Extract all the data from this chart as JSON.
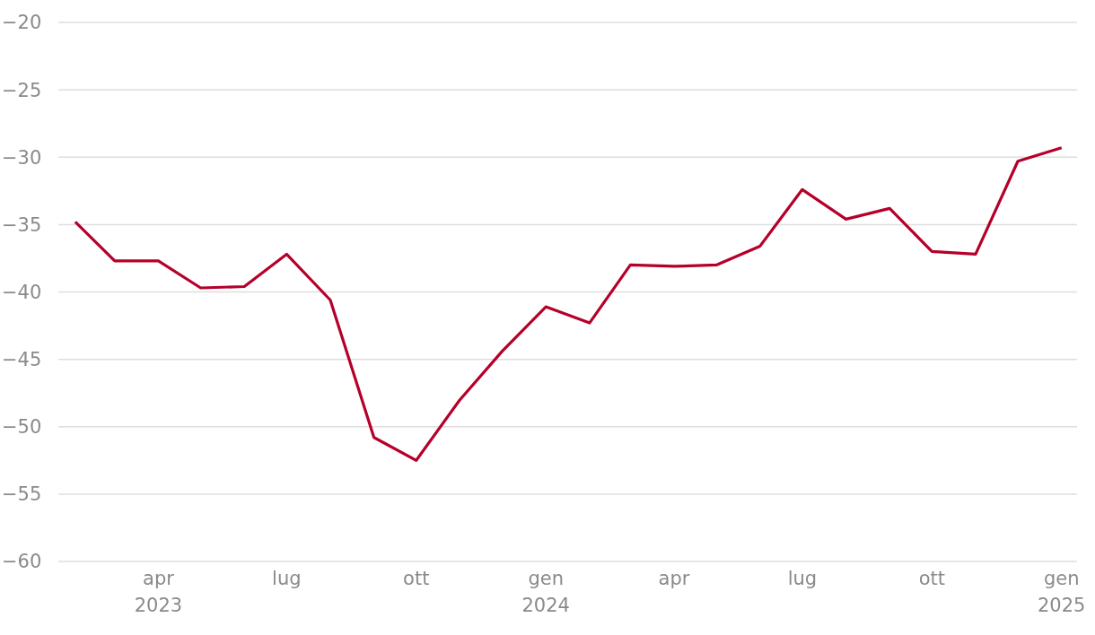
{
  "chart_data": {
    "type": "line",
    "x": [
      "2023-02",
      "2023-03",
      "2023-04",
      "2023-05",
      "2023-06",
      "2023-07",
      "2023-08",
      "2023-09",
      "2023-10",
      "2023-11",
      "2023-12",
      "2024-01",
      "2024-02",
      "2024-03",
      "2024-04",
      "2024-05",
      "2024-06",
      "2024-07",
      "2024-08",
      "2024-09",
      "2024-10",
      "2024-11",
      "2024-12",
      "2025-01"
    ],
    "series": [
      {
        "color": "#b5002a",
        "values": [
          -34.8,
          -37.7,
          -37.7,
          -39.7,
          -39.6,
          -37.2,
          -40.6,
          -50.8,
          -52.5,
          -48.0,
          -44.4,
          -41.1,
          -42.3,
          -38.0,
          -38.1,
          -38.0,
          -36.6,
          -32.4,
          -34.6,
          -33.8,
          -37.0,
          -37.2,
          -30.3,
          -29.3
        ]
      }
    ],
    "xlim": [
      "2023-01-20",
      "2025-01-12"
    ],
    "xticks": [
      {
        "value": "2023-04",
        "label": "apr\n2023"
      },
      {
        "value": "2023-07",
        "label": "lug"
      },
      {
        "value": "2023-10",
        "label": "ott"
      },
      {
        "value": "2024-01",
        "label": "gen\n2024"
      },
      {
        "value": "2024-04",
        "label": "apr"
      },
      {
        "value": "2024-07",
        "label": "lug"
      },
      {
        "value": "2024-10",
        "label": "ott"
      },
      {
        "value": "2025-01",
        "label": "gen\n2025"
      }
    ],
    "ylim": [
      -60,
      -20
    ],
    "yticks": [
      {
        "value": -60,
        "label": "−60"
      },
      {
        "value": -55,
        "label": "−55"
      },
      {
        "value": -50,
        "label": "−50"
      },
      {
        "value": -45,
        "label": "−45"
      },
      {
        "value": -40,
        "label": "−40"
      },
      {
        "value": -35,
        "label": "−35"
      },
      {
        "value": -30,
        "label": "−30"
      },
      {
        "value": -25,
        "label": "−25"
      },
      {
        "value": -20,
        "label": "−20"
      }
    ],
    "grid": "y"
  }
}
